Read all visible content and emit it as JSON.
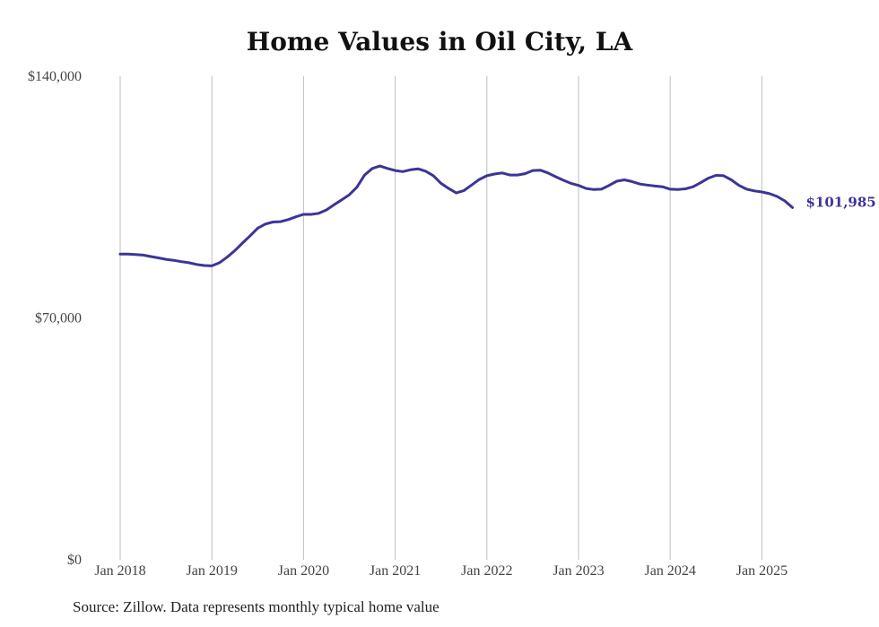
{
  "chart_data": {
    "type": "line",
    "title": "Home Values in Oil City, LA",
    "xlabel": "",
    "ylabel": "",
    "ylim": [
      0,
      140000
    ],
    "y_ticks": [
      {
        "value": 0,
        "label": "$0"
      },
      {
        "value": 70000,
        "label": "$70,000"
      },
      {
        "value": 140000,
        "label": "$140,000"
      }
    ],
    "x_ticks": [
      "Jan 2018",
      "Jan 2019",
      "Jan 2020",
      "Jan 2021",
      "Jan 2022",
      "Jan 2023",
      "Jan 2024",
      "Jan 2025"
    ],
    "grid": "vertical",
    "line_color": "#3b3597",
    "series": [
      {
        "values": [
          {
            "x": "2018-01",
            "y": 88500
          },
          {
            "x": "2018-02",
            "y": 88500
          },
          {
            "x": "2018-03",
            "y": 88400
          },
          {
            "x": "2018-04",
            "y": 88200
          },
          {
            "x": "2018-05",
            "y": 87800
          },
          {
            "x": "2018-06",
            "y": 87400
          },
          {
            "x": "2018-07",
            "y": 87000
          },
          {
            "x": "2018-08",
            "y": 86700
          },
          {
            "x": "2018-09",
            "y": 86300
          },
          {
            "x": "2018-10",
            "y": 86000
          },
          {
            "x": "2018-11",
            "y": 85500
          },
          {
            "x": "2018-12",
            "y": 85200
          },
          {
            "x": "2019-01",
            "y": 85100
          },
          {
            "x": "2019-02",
            "y": 86000
          },
          {
            "x": "2019-03",
            "y": 87600
          },
          {
            "x": "2019-04",
            "y": 89500
          },
          {
            "x": "2019-05",
            "y": 91700
          },
          {
            "x": "2019-06",
            "y": 93800
          },
          {
            "x": "2019-07",
            "y": 96000
          },
          {
            "x": "2019-08",
            "y": 97200
          },
          {
            "x": "2019-09",
            "y": 97800
          },
          {
            "x": "2019-10",
            "y": 97900
          },
          {
            "x": "2019-11",
            "y": 98500
          },
          {
            "x": "2019-12",
            "y": 99300
          },
          {
            "x": "2020-01",
            "y": 100000
          },
          {
            "x": "2020-02",
            "y": 100000
          },
          {
            "x": "2020-03",
            "y": 100300
          },
          {
            "x": "2020-04",
            "y": 101300
          },
          {
            "x": "2020-05",
            "y": 102800
          },
          {
            "x": "2020-06",
            "y": 104200
          },
          {
            "x": "2020-07",
            "y": 105700
          },
          {
            "x": "2020-08",
            "y": 107900
          },
          {
            "x": "2020-09",
            "y": 111400
          },
          {
            "x": "2020-10",
            "y": 113300
          },
          {
            "x": "2020-11",
            "y": 114000
          },
          {
            "x": "2020-12",
            "y": 113300
          },
          {
            "x": "2021-01",
            "y": 112700
          },
          {
            "x": "2021-02",
            "y": 112400
          },
          {
            "x": "2021-03",
            "y": 112900
          },
          {
            "x": "2021-04",
            "y": 113200
          },
          {
            "x": "2021-05",
            "y": 112500
          },
          {
            "x": "2021-06",
            "y": 111200
          },
          {
            "x": "2021-07",
            "y": 109000
          },
          {
            "x": "2021-08",
            "y": 107500
          },
          {
            "x": "2021-09",
            "y": 106200
          },
          {
            "x": "2021-10",
            "y": 106900
          },
          {
            "x": "2021-11",
            "y": 108500
          },
          {
            "x": "2021-12",
            "y": 110100
          },
          {
            "x": "2022-01",
            "y": 111200
          },
          {
            "x": "2022-02",
            "y": 111700
          },
          {
            "x": "2022-03",
            "y": 112000
          },
          {
            "x": "2022-04",
            "y": 111400
          },
          {
            "x": "2022-05",
            "y": 111400
          },
          {
            "x": "2022-06",
            "y": 111800
          },
          {
            "x": "2022-07",
            "y": 112700
          },
          {
            "x": "2022-08",
            "y": 112800
          },
          {
            "x": "2022-09",
            "y": 112000
          },
          {
            "x": "2022-10",
            "y": 110900
          },
          {
            "x": "2022-11",
            "y": 109900
          },
          {
            "x": "2022-12",
            "y": 109000
          },
          {
            "x": "2023-01",
            "y": 108400
          },
          {
            "x": "2023-02",
            "y": 107500
          },
          {
            "x": "2023-03",
            "y": 107200
          },
          {
            "x": "2023-04",
            "y": 107300
          },
          {
            "x": "2023-05",
            "y": 108400
          },
          {
            "x": "2023-06",
            "y": 109600
          },
          {
            "x": "2023-07",
            "y": 110000
          },
          {
            "x": "2023-08",
            "y": 109500
          },
          {
            "x": "2023-09",
            "y": 108800
          },
          {
            "x": "2023-10",
            "y": 108500
          },
          {
            "x": "2023-11",
            "y": 108200
          },
          {
            "x": "2023-12",
            "y": 108000
          },
          {
            "x": "2024-01",
            "y": 107300
          },
          {
            "x": "2024-02",
            "y": 107200
          },
          {
            "x": "2024-03",
            "y": 107400
          },
          {
            "x": "2024-04",
            "y": 108000
          },
          {
            "x": "2024-05",
            "y": 109200
          },
          {
            "x": "2024-06",
            "y": 110500
          },
          {
            "x": "2024-07",
            "y": 111300
          },
          {
            "x": "2024-08",
            "y": 111200
          },
          {
            "x": "2024-09",
            "y": 110000
          },
          {
            "x": "2024-10",
            "y": 108400
          },
          {
            "x": "2024-11",
            "y": 107300
          },
          {
            "x": "2024-12",
            "y": 106800
          },
          {
            "x": "2025-01",
            "y": 106500
          },
          {
            "x": "2025-02",
            "y": 106000
          },
          {
            "x": "2025-03",
            "y": 105200
          },
          {
            "x": "2025-04",
            "y": 103900
          },
          {
            "x": "2025-05",
            "y": 101985
          }
        ]
      }
    ],
    "end_label": "$101,985",
    "source": "Source: Zillow. Data represents monthly typical home value"
  }
}
